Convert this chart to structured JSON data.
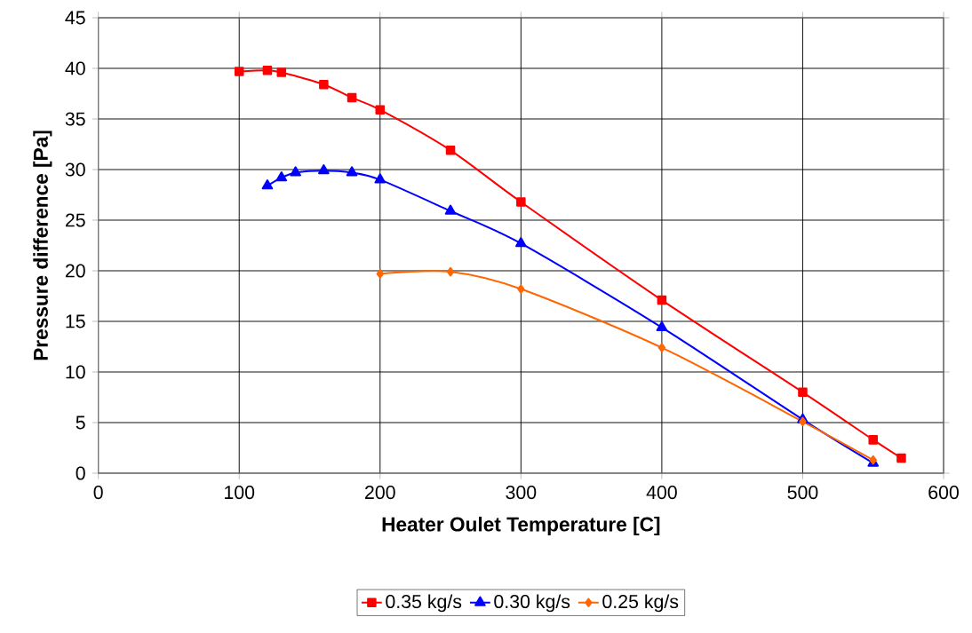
{
  "chart_data": {
    "type": "line",
    "xlabel": "Heater Oulet Temperature  [C]",
    "ylabel": "Pressure difference  [Pa]",
    "xlim": [
      0,
      600
    ],
    "xticks": [
      0,
      100,
      200,
      300,
      400,
      500,
      600
    ],
    "ylim": [
      0,
      45
    ],
    "yticks": [
      0,
      5,
      10,
      15,
      20,
      25,
      30,
      35,
      40,
      45
    ],
    "grid": true,
    "legend": "bottom",
    "line_style": "solid",
    "series": [
      {
        "name": "0.35 kg/s",
        "color": "#ff0000",
        "marker": "square",
        "x": [
          100,
          120,
          130,
          160,
          180,
          200,
          250,
          300,
          400,
          500,
          550,
          570
        ],
        "values": [
          39.7,
          39.8,
          39.6,
          38.4,
          37.1,
          35.9,
          31.9,
          26.8,
          17.1,
          8.0,
          3.3,
          1.5
        ]
      },
      {
        "name": "0.30 kg/s",
        "color": "#0000ff",
        "marker": "triangle",
        "x": [
          120,
          130,
          140,
          160,
          180,
          200,
          250,
          300,
          400,
          500,
          550
        ],
        "values": [
          28.4,
          29.2,
          29.7,
          29.9,
          29.7,
          29.0,
          25.9,
          22.7,
          14.4,
          5.3,
          1.0
        ]
      },
      {
        "name": "0.25 kg/s",
        "color": "#ff6600",
        "marker": "diamond",
        "x": [
          200,
          250,
          300,
          400,
          500,
          550
        ],
        "values": [
          19.7,
          19.9,
          18.2,
          12.4,
          5.1,
          1.3
        ]
      }
    ]
  }
}
